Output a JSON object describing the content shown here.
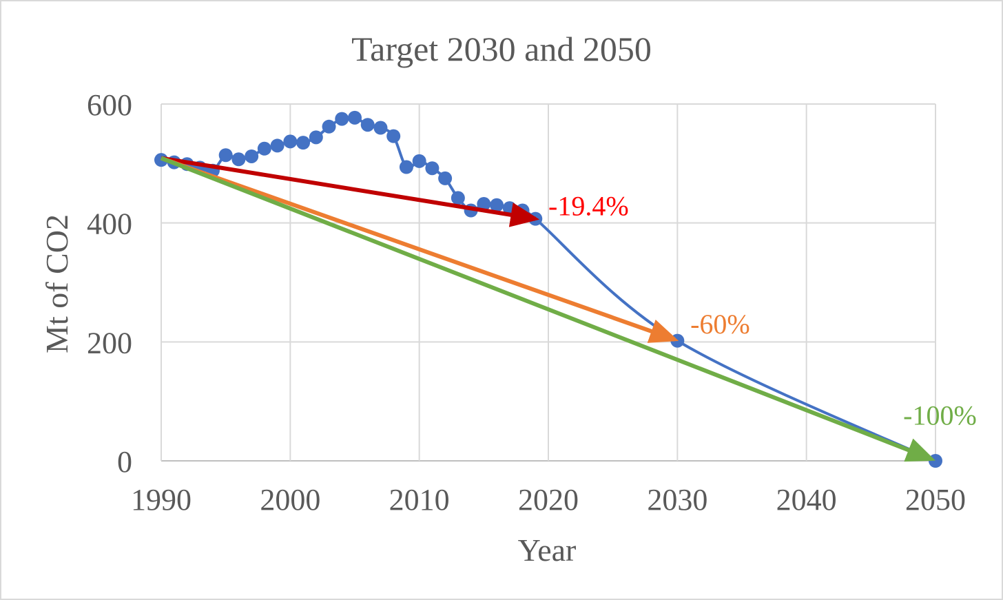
{
  "chart_data": {
    "type": "line",
    "title": "Target 2030 and 2050",
    "xlabel": "Year",
    "ylabel": "Mt of CO2",
    "xlim": [
      1990,
      2050
    ],
    "ylim": [
      0,
      600
    ],
    "x_ticks": [
      "1990",
      "2000",
      "2010",
      "2020",
      "2030",
      "2040",
      "2050"
    ],
    "y_ticks": [
      "0",
      "200",
      "400",
      "600"
    ],
    "grid": true,
    "series": [
      {
        "color": "#4472c4",
        "points": [
          [
            1990,
            506
          ],
          [
            1991,
            502
          ],
          [
            1992,
            499
          ],
          [
            1993,
            493
          ],
          [
            1994,
            488
          ],
          [
            1995,
            514
          ],
          [
            1996,
            507
          ],
          [
            1997,
            512
          ],
          [
            1998,
            525
          ],
          [
            1999,
            530
          ],
          [
            2000,
            537
          ],
          [
            2001,
            535
          ],
          [
            2002,
            544
          ],
          [
            2003,
            562
          ],
          [
            2004,
            575
          ],
          [
            2005,
            577
          ],
          [
            2006,
            565
          ],
          [
            2007,
            560
          ],
          [
            2008,
            546
          ],
          [
            2009,
            494
          ],
          [
            2010,
            504
          ],
          [
            2011,
            492
          ],
          [
            2012,
            475
          ],
          [
            2013,
            442
          ],
          [
            2014,
            421
          ],
          [
            2015,
            432
          ],
          [
            2016,
            430
          ],
          [
            2017,
            425
          ],
          [
            2018,
            421
          ],
          [
            2019,
            407
          ],
          [
            2030,
            202
          ],
          [
            2050,
            0
          ]
        ]
      }
    ],
    "annotations": [
      {
        "text": "-19.4%",
        "color": "#ff0000",
        "from": [
          1990,
          509
        ],
        "to": [
          2019,
          407
        ],
        "label_at": [
          2020,
          413
        ]
      },
      {
        "text": "-60%",
        "color": "#ed7d31",
        "from": [
          1990,
          509
        ],
        "to": [
          2029.8,
          204
        ],
        "label_at": [
          2031,
          214
        ]
      },
      {
        "text": "-100%",
        "color": "#70ad47",
        "from": [
          1990,
          509
        ],
        "to": [
          2049.7,
          3
        ],
        "label_at": [
          2047.5,
          61
        ]
      }
    ],
    "arrow_colors": [
      "#c00000",
      "#ed7d31",
      "#70ad47"
    ]
  }
}
